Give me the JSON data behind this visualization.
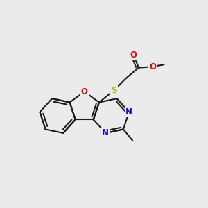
{
  "bg_color": "#ebebeb",
  "bond_color": "#1a1a1a",
  "bond_width": 1.5,
  "atom_colors": {
    "N": "#1010cc",
    "O": "#cc1010",
    "S": "#b8b800",
    "C": "#1a1a1a"
  },
  "font_size": 8.5,
  "font_size_small": 7.5
}
